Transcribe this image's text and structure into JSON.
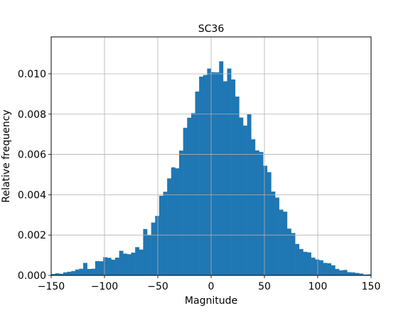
{
  "chart_data": {
    "type": "bar",
    "title": "SC36",
    "xlabel": "Magnitude",
    "ylabel": "Relative frequency",
    "xlim": [
      -150,
      150
    ],
    "ylim": [
      0,
      0.01183
    ],
    "grid": true,
    "bar_color": "#1f77b4",
    "x_ticks": [
      {
        "value": -150,
        "label": "−150"
      },
      {
        "value": -100,
        "label": "−100"
      },
      {
        "value": -50,
        "label": "−50"
      },
      {
        "value": 0,
        "label": "0"
      },
      {
        "value": 50,
        "label": "50"
      },
      {
        "value": 100,
        "label": "100"
      },
      {
        "value": 150,
        "label": "150"
      }
    ],
    "y_ticks": [
      {
        "value": 0,
        "label": "0.000"
      },
      {
        "value": 0.002,
        "label": "0.002"
      },
      {
        "value": 0.004,
        "label": "0.004"
      },
      {
        "value": 0.006,
        "label": "0.006"
      },
      {
        "value": 0.008,
        "label": "0.008"
      },
      {
        "value": 0.01,
        "label": "0.010"
      }
    ],
    "bin_width": 3.75,
    "bin_starts": [
      -150,
      -146.25,
      -142.5,
      -138.75,
      -135,
      -131.25,
      -127.5,
      -123.75,
      -120,
      -116.25,
      -112.5,
      -108.75,
      -105,
      -101.25,
      -97.5,
      -93.75,
      -90,
      -86.25,
      -82.5,
      -78.75,
      -75,
      -71.25,
      -67.5,
      -63.75,
      -60,
      -56.25,
      -52.5,
      -48.75,
      -45,
      -41.25,
      -37.5,
      -33.75,
      -30,
      -26.25,
      -22.5,
      -18.75,
      -15,
      -11.25,
      -7.5,
      -3.75,
      0,
      3.75,
      7.5,
      11.25,
      15,
      18.75,
      22.5,
      26.25,
      30,
      33.75,
      37.5,
      41.25,
      45,
      48.75,
      52.5,
      56.25,
      60,
      63.75,
      67.5,
      71.25,
      75,
      78.75,
      82.5,
      86.25,
      90,
      93.75,
      97.5,
      101.25,
      105,
      108.75,
      112.5,
      116.25,
      120,
      123.75,
      127.5,
      131.25,
      135,
      138.75,
      142.5,
      146.25
    ],
    "values": [
      7e-05,
      0.0001,
      8e-05,
      0.00015,
      0.00018,
      0.00021,
      0.00029,
      0.00033,
      0.00062,
      0.00032,
      0.00033,
      0.00071,
      0.0007,
      0.0009,
      0.00087,
      0.00078,
      0.00088,
      0.00122,
      0.00108,
      0.00105,
      0.00113,
      0.0014,
      0.00128,
      0.0023,
      0.00201,
      0.00262,
      0.00295,
      0.00395,
      0.00415,
      0.00481,
      0.00536,
      0.00531,
      0.00619,
      0.00732,
      0.00782,
      0.00805,
      0.00912,
      0.00986,
      0.00994,
      0.01026,
      0.01008,
      0.01007,
      0.01062,
      0.00963,
      0.01026,
      0.00972,
      0.00887,
      0.00783,
      0.00743,
      0.008,
      0.00675,
      0.0062,
      0.00612,
      0.00544,
      0.00512,
      0.00416,
      0.00386,
      0.00326,
      0.00316,
      0.00232,
      0.0021,
      0.00156,
      0.00131,
      0.00117,
      0.00114,
      0.00088,
      0.00079,
      0.00075,
      0.00062,
      0.0006,
      0.0005,
      0.00032,
      0.00025,
      0.00027,
      0.00016,
      0.00015,
      0.00012,
      9e-05,
      4e-05,
      5e-05
    ]
  }
}
